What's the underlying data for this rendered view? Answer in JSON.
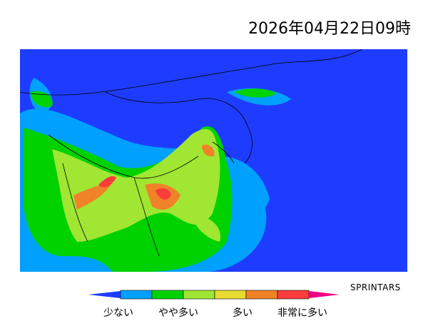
{
  "title": "2026年04月22日09時",
  "credit": "SPRINTARS",
  "legend": {
    "colors": [
      "#1e3cff",
      "#00a0ff",
      "#00d200",
      "#a0e632",
      "#e6dc32",
      "#f08228",
      "#fa3c3c",
      "#f00082"
    ],
    "labels": [
      "少ない",
      "やや多い",
      "多い",
      "非常に多い"
    ]
  },
  "map": {
    "background": "#1e3cff"
  }
}
